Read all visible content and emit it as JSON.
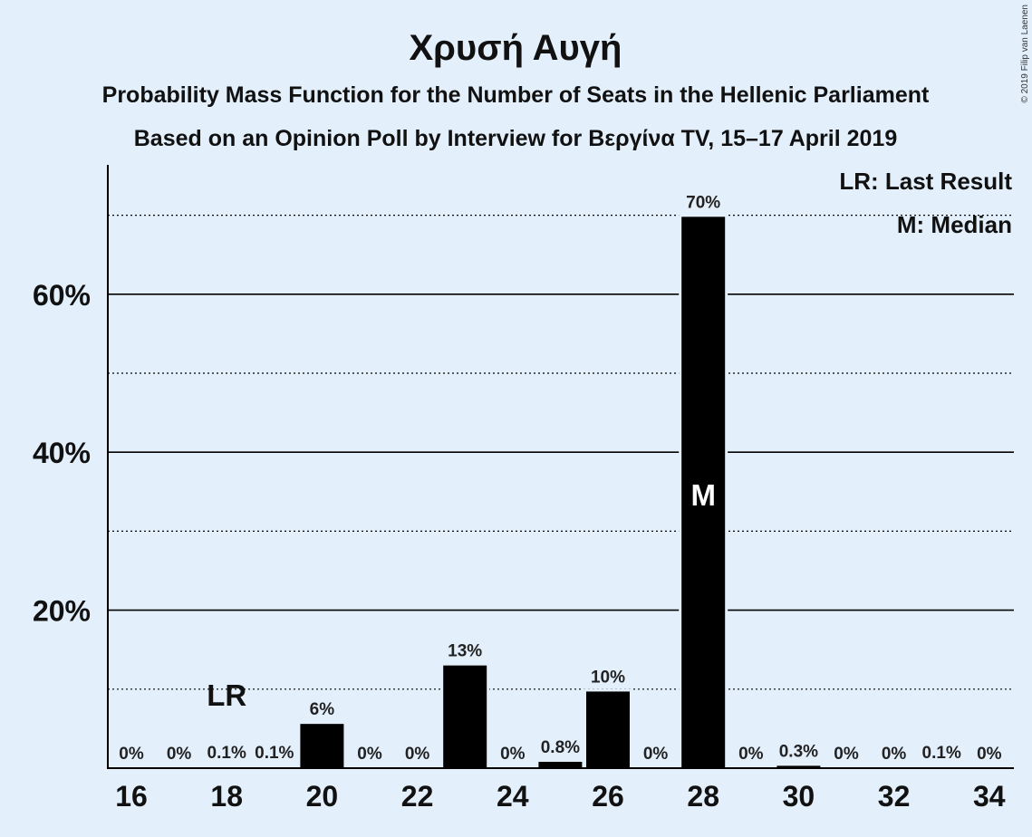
{
  "chart_data": {
    "type": "bar",
    "title": "Χρυσή Αυγή",
    "subtitle": "Probability Mass Function for the Number of Seats in the Hellenic Parliament",
    "subtitle2": "Based on an Opinion Poll by Interview for Βεργίνα TV, 15–17 April 2019",
    "copyright": "© 2019 Filip van Laenen",
    "x": [
      16,
      17,
      18,
      19,
      20,
      21,
      22,
      23,
      24,
      25,
      26,
      27,
      28,
      29,
      30,
      31,
      32,
      33,
      34
    ],
    "values": [
      0,
      0,
      0.1,
      0.1,
      5.6,
      0,
      0,
      13.0,
      0,
      0.8,
      9.7,
      0,
      69.8,
      0,
      0.3,
      0,
      0,
      0.1,
      0
    ],
    "labels": [
      "0%",
      "0%",
      "0.1%",
      "0.1%",
      "6%",
      "0%",
      "0%",
      "13%",
      "0%",
      "0.8%",
      "10%",
      "0%",
      "70%",
      "0%",
      "0.3%",
      "0%",
      "0%",
      "0.1%",
      "0%"
    ],
    "xticks": [
      16,
      18,
      20,
      22,
      24,
      26,
      28,
      30,
      32,
      34
    ],
    "yticks": [
      20,
      40,
      60
    ],
    "ytick_labels": [
      "20%",
      "40%",
      "60%"
    ],
    "ylim": [
      0,
      76
    ],
    "gridlines_solid": [
      20,
      40,
      60
    ],
    "gridlines_dotted": [
      10,
      30,
      50,
      70
    ],
    "legend": [
      "LR: Last Result",
      "M: Median"
    ],
    "legend_position": "top-right",
    "last_result": {
      "seat": 18,
      "label": "LR"
    },
    "median": {
      "seat": 28,
      "label": "M"
    },
    "bar_color": "#000000",
    "background_color": "#e3f0fc"
  }
}
